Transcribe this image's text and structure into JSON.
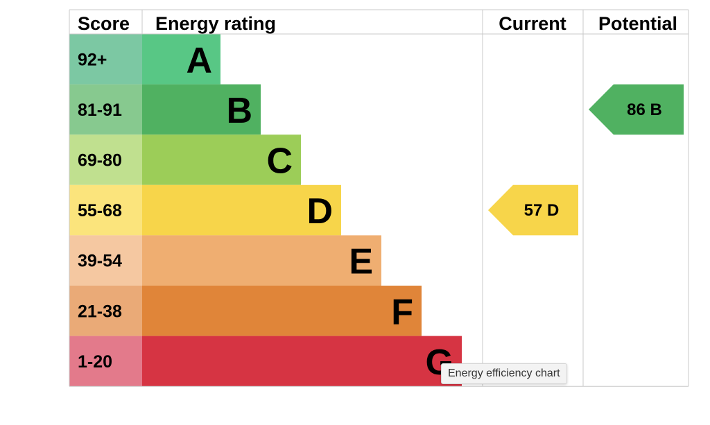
{
  "chart_data": {
    "type": "table",
    "headers": {
      "score": "Score",
      "rating": "Energy rating",
      "current": "Current",
      "potential": "Potential"
    },
    "bands": [
      {
        "score": "92+",
        "letter": "A",
        "score_color": "#7cc8a3",
        "bar_color": "#58c785"
      },
      {
        "score": "81-91",
        "letter": "B",
        "score_color": "#87c98f",
        "bar_color": "#50b161"
      },
      {
        "score": "69-80",
        "letter": "C",
        "score_color": "#c0e08f",
        "bar_color": "#9ccd58"
      },
      {
        "score": "55-68",
        "letter": "D",
        "score_color": "#fbe47c",
        "bar_color": "#f7d54a"
      },
      {
        "score": "39-54",
        "letter": "E",
        "score_color": "#f5c8a1",
        "bar_color": "#efae71"
      },
      {
        "score": "21-38",
        "letter": "F",
        "score_color": "#eaaa77",
        "bar_color": "#e08539"
      },
      {
        "score": "1-20",
        "letter": "G",
        "score_color": "#e37a8b",
        "bar_color": "#d63443"
      }
    ],
    "current": {
      "value": 57,
      "letter": "D",
      "label": "57  D",
      "color": "#f7d54a"
    },
    "potential": {
      "value": 86,
      "letter": "B",
      "label": "86  B",
      "color": "#50b161"
    }
  },
  "tooltip": {
    "text": "Energy efficiency chart"
  },
  "colors": {
    "grid": "#c8c8c8",
    "text": "#000000"
  }
}
